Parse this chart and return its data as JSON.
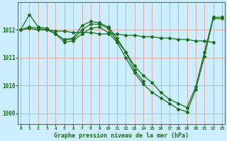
{
  "background_color": "#cceeff",
  "grid_color": "#ddaaaa",
  "line_color": "#1a6e1a",
  "xlabel": "Graphe pression niveau de la mer (hPa)",
  "x_ticks": [
    0,
    1,
    2,
    3,
    4,
    5,
    6,
    7,
    8,
    9,
    10,
    11,
    12,
    13,
    14,
    15,
    16,
    17,
    18,
    19,
    20,
    21,
    22,
    23
  ],
  "yticks": [
    1009,
    1010,
    1011,
    1012
  ],
  "ylim": [
    1008.6,
    1013.0
  ],
  "xlim": [
    -0.3,
    23.3
  ],
  "line_flat": {
    "x": [
      0,
      1,
      2,
      3,
      4,
      5,
      6,
      7,
      8,
      9,
      10,
      11,
      12,
      13,
      14,
      15,
      16,
      17,
      18,
      19,
      20,
      21,
      22
    ],
    "y": [
      1012.0,
      1012.05,
      1012.0,
      1012.0,
      1011.95,
      1011.95,
      1011.9,
      1011.9,
      1011.9,
      1011.85,
      1011.85,
      1011.85,
      1011.8,
      1011.8,
      1011.75,
      1011.75,
      1011.7,
      1011.7,
      1011.65,
      1011.65,
      1011.6,
      1011.6,
      1011.55
    ]
  },
  "line_main": {
    "x": [
      0,
      1,
      2,
      3,
      4,
      5,
      6,
      7,
      8,
      9,
      10,
      11,
      12,
      13,
      14,
      15,
      16,
      17,
      18,
      19,
      20,
      21,
      22,
      23
    ],
    "y": [
      1012.0,
      1012.55,
      1012.1,
      1012.05,
      1011.85,
      1011.65,
      1011.65,
      1012.0,
      1012.2,
      1012.2,
      1012.05,
      1011.6,
      1011.2,
      1010.7,
      1010.35,
      1010.1,
      1009.75,
      1009.5,
      1009.35,
      1009.2,
      1009.95,
      1011.2,
      1012.45,
      1012.45
    ]
  },
  "line_arc": {
    "x": [
      5,
      6,
      7,
      8,
      9,
      10,
      11,
      12,
      13,
      14
    ],
    "y": [
      1011.65,
      1011.7,
      1012.15,
      1012.3,
      1012.25,
      1012.1,
      1011.7,
      1011.2,
      1010.55,
      1010.15
    ]
  },
  "line_descent": {
    "x": [
      0,
      1,
      2,
      3,
      4,
      5,
      6,
      7,
      8,
      9,
      10,
      11,
      12,
      13,
      14,
      15,
      16,
      17,
      18,
      19,
      20,
      21,
      22,
      23
    ],
    "y": [
      1012.0,
      1012.1,
      1012.05,
      1012.0,
      1011.85,
      1011.55,
      1011.6,
      1011.85,
      1012.05,
      1012.1,
      1011.9,
      1011.55,
      1011.0,
      1010.45,
      1010.05,
      1009.75,
      1009.55,
      1009.35,
      1009.15,
      1009.05,
      1009.85,
      1011.05,
      1012.4,
      1012.4
    ]
  }
}
